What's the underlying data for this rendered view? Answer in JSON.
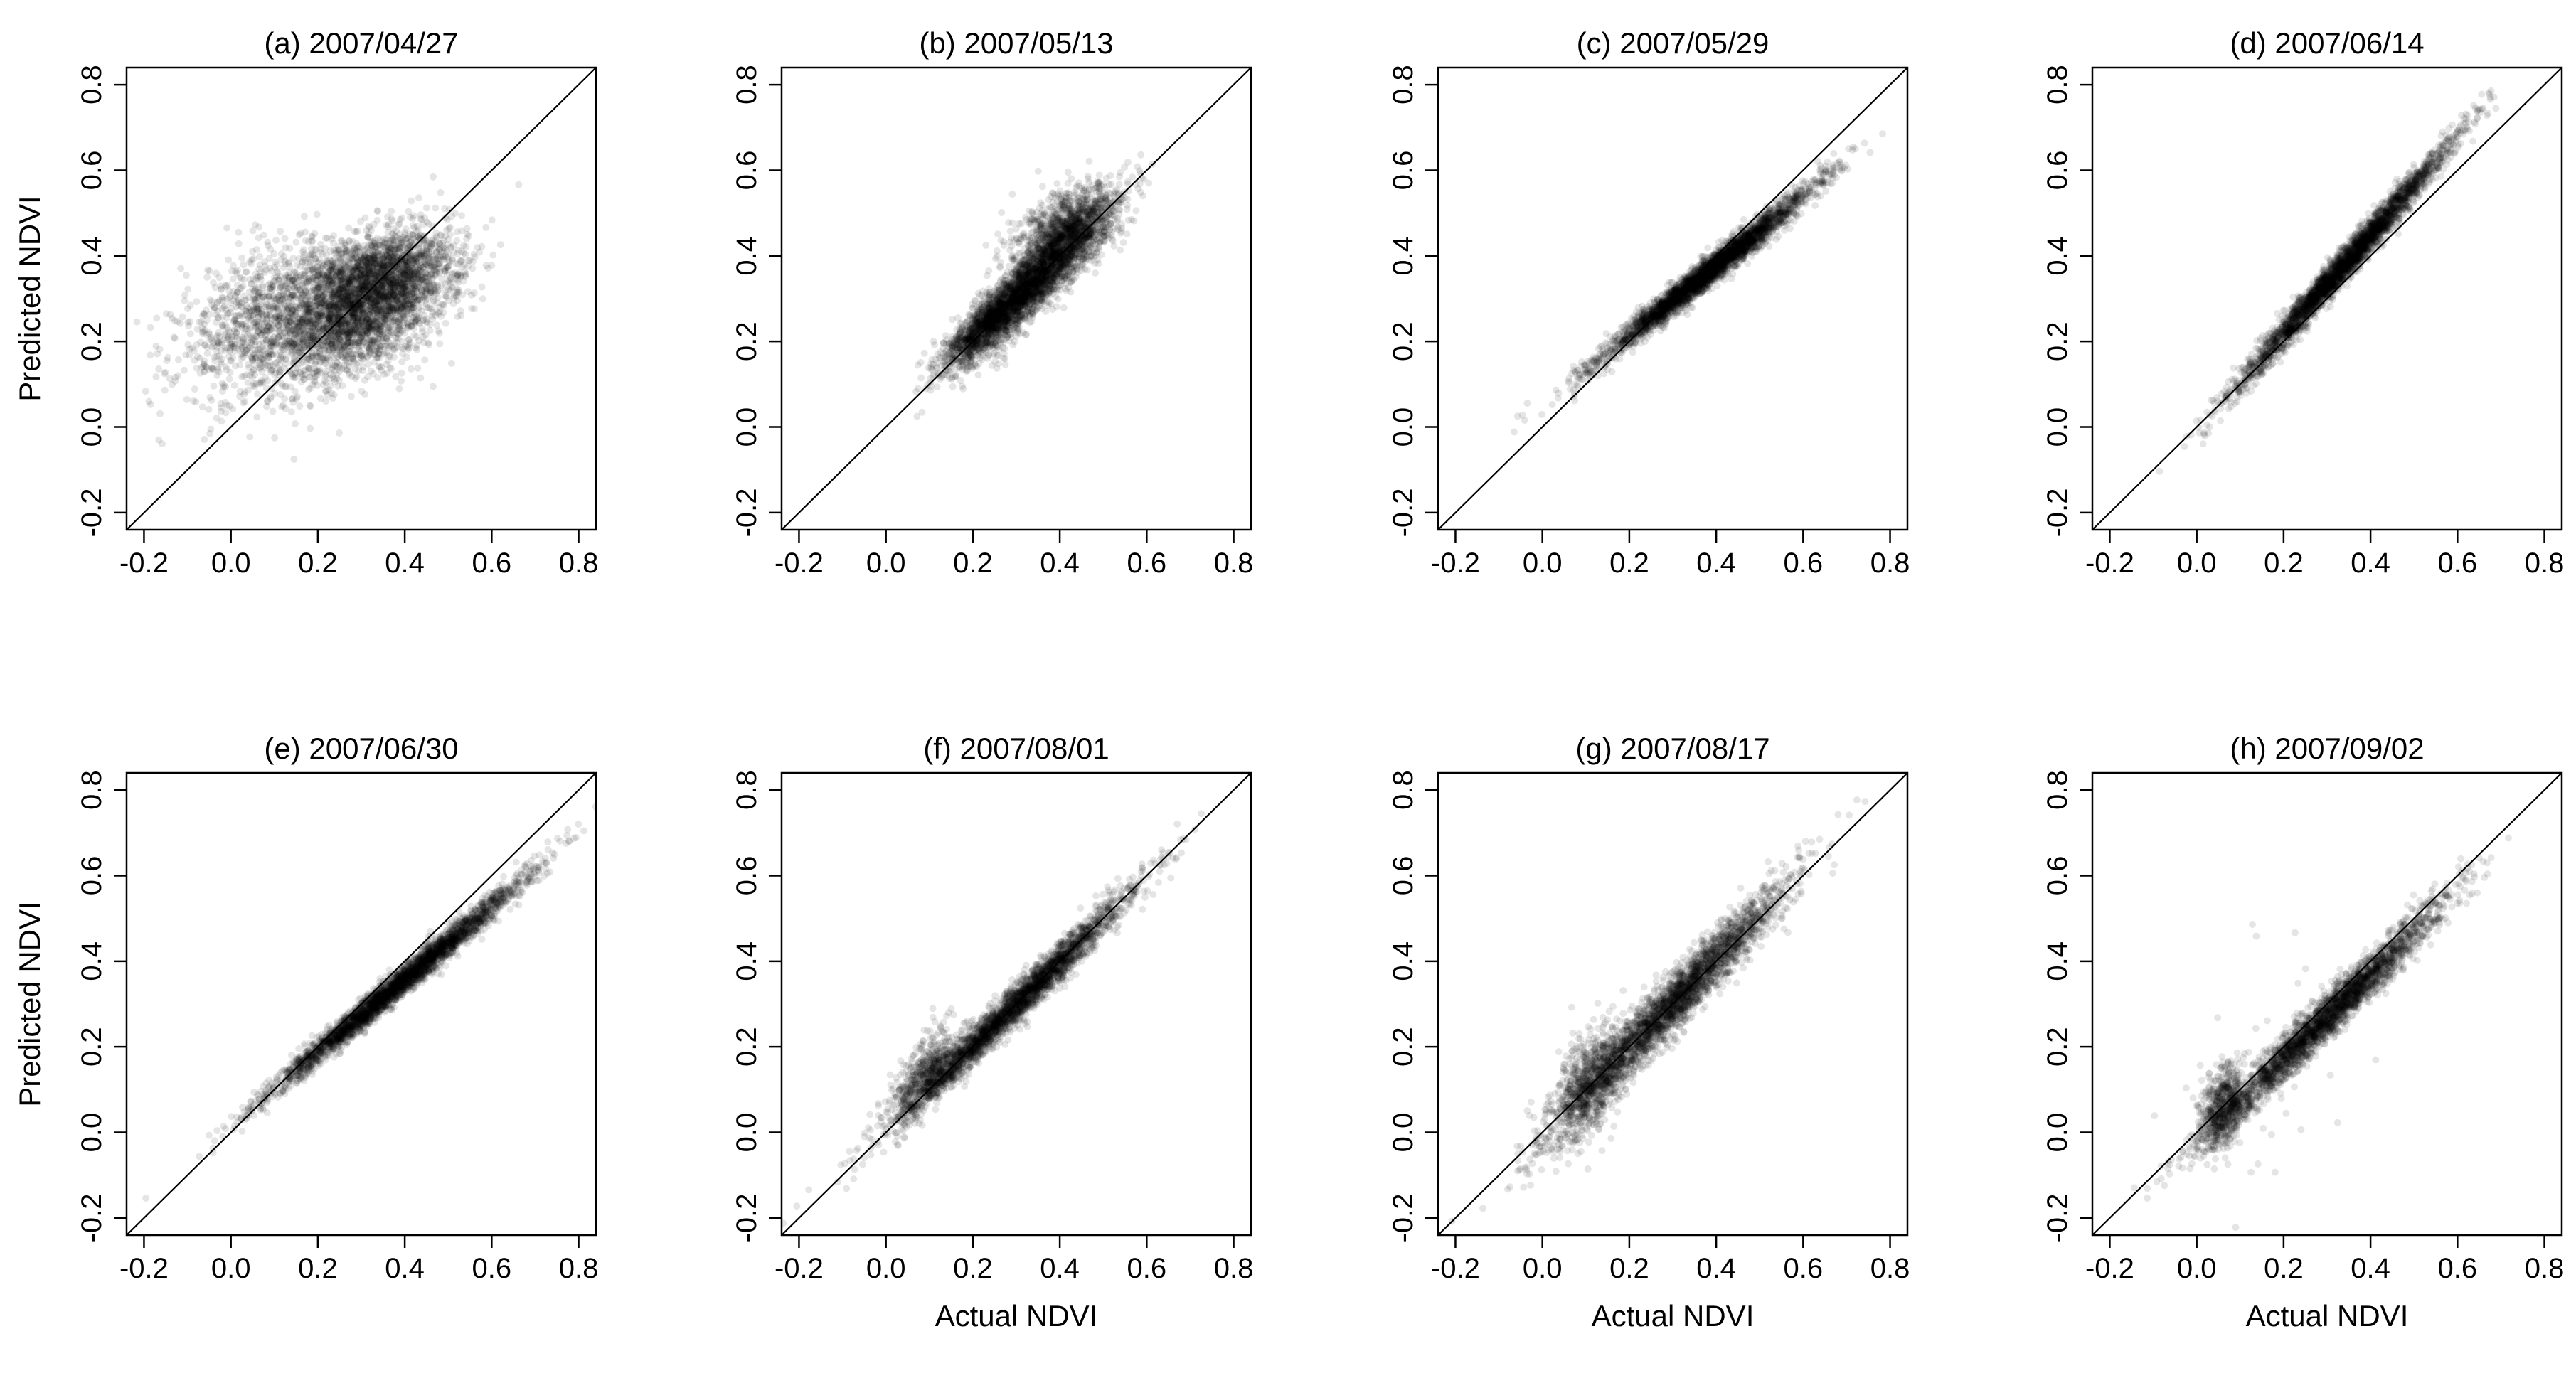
{
  "figure": {
    "panel_titles": [
      "(a) 2007/04/27",
      "(b) 2007/05/13",
      "(c) 2007/05/29",
      "(d) 2007/06/14",
      "(e) 2007/06/30",
      "(f) 2007/08/01",
      "(g) 2007/08/17",
      "(h) 2007/09/02"
    ],
    "xlabel": "Actual NDVI",
    "ylabel": "Predicted NDVI",
    "tick_labels": [
      "-0.2",
      "0.0",
      "0.2",
      "0.4",
      "0.6",
      "0.8"
    ]
  },
  "chart_data": [
    {
      "type": "scatter",
      "title": "(a) 2007/04/27",
      "xlabel": "",
      "ylabel": "Predicted NDVI",
      "xlim": [
        -0.24,
        0.84
      ],
      "ylim": [
        -0.24,
        0.84
      ],
      "xticks": [
        -0.2,
        0.0,
        0.2,
        0.4,
        0.6,
        0.8
      ],
      "yticks": [
        -0.2,
        0.0,
        0.2,
        0.4,
        0.6,
        0.8
      ],
      "reference_line": "y = x",
      "point_color": "#000000",
      "clusters": [
        {
          "cx": 0.3,
          "cy": 0.28,
          "sx": 0.1,
          "sy": 0.08,
          "rho": 0.45,
          "n": 3000
        },
        {
          "cx": 0.08,
          "cy": 0.25,
          "sx": 0.1,
          "sy": 0.09,
          "rho": 0.4,
          "n": 1000
        },
        {
          "cx": 0.35,
          "cy": 0.36,
          "sx": 0.09,
          "sy": 0.05,
          "rho": 0.3,
          "n": 1000
        }
      ]
    },
    {
      "type": "scatter",
      "title": "(b) 2007/05/13",
      "xlabel": "",
      "ylabel": "",
      "xlim": [
        -0.24,
        0.84
      ],
      "ylim": [
        -0.24,
        0.84
      ],
      "xticks": [
        -0.2,
        0.0,
        0.2,
        0.4,
        0.6,
        0.8
      ],
      "yticks": [
        -0.2,
        0.0,
        0.2,
        0.4,
        0.6,
        0.8
      ],
      "reference_line": "y = x",
      "point_color": "#000000",
      "clusters": [
        {
          "cx": 0.33,
          "cy": 0.33,
          "sx": 0.08,
          "sy": 0.085,
          "rho": 0.9,
          "n": 3000
        },
        {
          "cx": 0.42,
          "cy": 0.46,
          "sx": 0.06,
          "sy": 0.05,
          "rho": 0.5,
          "n": 1200
        },
        {
          "cx": 0.23,
          "cy": 0.24,
          "sx": 0.05,
          "sy": 0.05,
          "rho": 0.85,
          "n": 800
        }
      ]
    },
    {
      "type": "scatter",
      "title": "(c) 2007/05/29",
      "xlabel": "",
      "ylabel": "",
      "xlim": [
        -0.24,
        0.84
      ],
      "ylim": [
        -0.24,
        0.84
      ],
      "xticks": [
        -0.2,
        0.0,
        0.2,
        0.4,
        0.6,
        0.8
      ],
      "yticks": [
        -0.2,
        0.0,
        0.2,
        0.4,
        0.6,
        0.8
      ],
      "reference_line": "y = x",
      "point_color": "#000000",
      "clusters": [
        {
          "cx": 0.38,
          "cy": 0.36,
          "sx": 0.12,
          "sy": 0.1,
          "rho": 0.985,
          "n": 3500
        }
      ]
    },
    {
      "type": "scatter",
      "title": "(d) 2007/06/14",
      "xlabel": "",
      "ylabel": "",
      "xlim": [
        -0.24,
        0.84
      ],
      "ylim": [
        -0.24,
        0.84
      ],
      "xticks": [
        -0.2,
        0.0,
        0.2,
        0.4,
        0.6,
        0.8
      ],
      "yticks": [
        -0.2,
        0.0,
        0.2,
        0.4,
        0.6,
        0.8
      ],
      "reference_line": "y = x",
      "point_color": "#000000",
      "clusters": [
        {
          "cx": 0.34,
          "cy": 0.38,
          "sx": 0.12,
          "sy": 0.14,
          "rho": 0.99,
          "n": 3500
        }
      ]
    },
    {
      "type": "scatter",
      "title": "(e) 2007/06/30",
      "xlabel": "",
      "ylabel": "Predicted NDVI",
      "xlim": [
        -0.24,
        0.84
      ],
      "ylim": [
        -0.24,
        0.84
      ],
      "xticks": [
        -0.2,
        0.0,
        0.2,
        0.4,
        0.6,
        0.8
      ],
      "yticks": [
        -0.2,
        0.0,
        0.2,
        0.4,
        0.6,
        0.8
      ],
      "reference_line": "y = x",
      "point_color": "#000000",
      "clusters": [
        {
          "cx": 0.38,
          "cy": 0.34,
          "sx": 0.14,
          "sy": 0.12,
          "rho": 0.99,
          "n": 3500
        }
      ]
    },
    {
      "type": "scatter",
      "title": "(f) 2007/08/01",
      "xlabel": "Actual NDVI",
      "ylabel": "",
      "xlim": [
        -0.24,
        0.84
      ],
      "ylim": [
        -0.24,
        0.84
      ],
      "xticks": [
        -0.2,
        0.0,
        0.2,
        0.4,
        0.6,
        0.8
      ],
      "yticks": [
        -0.2,
        0.0,
        0.2,
        0.4,
        0.6,
        0.8
      ],
      "reference_line": "y = x",
      "point_color": "#000000",
      "clusters": [
        {
          "cx": 0.3,
          "cy": 0.3,
          "sx": 0.13,
          "sy": 0.13,
          "rho": 0.985,
          "n": 3000
        },
        {
          "cx": 0.1,
          "cy": 0.14,
          "sx": 0.04,
          "sy": 0.05,
          "rho": 0.6,
          "n": 600
        }
      ]
    },
    {
      "type": "scatter",
      "title": "(g) 2007/08/17",
      "xlabel": "Actual NDVI",
      "ylabel": "",
      "xlim": [
        -0.24,
        0.84
      ],
      "ylim": [
        -0.24,
        0.84
      ],
      "xticks": [
        -0.2,
        0.0,
        0.2,
        0.4,
        0.6,
        0.8
      ],
      "yticks": [
        -0.2,
        0.0,
        0.2,
        0.4,
        0.6,
        0.8
      ],
      "reference_line": "y = x",
      "point_color": "#000000",
      "clusters": [
        {
          "cx": 0.3,
          "cy": 0.3,
          "sx": 0.13,
          "sy": 0.14,
          "rho": 0.97,
          "n": 3000
        },
        {
          "cx": 0.11,
          "cy": 0.12,
          "sx": 0.04,
          "sy": 0.07,
          "rho": 0.5,
          "n": 700
        }
      ]
    },
    {
      "type": "scatter",
      "title": "(h) 2007/09/02",
      "xlabel": "Actual NDVI",
      "ylabel": "",
      "xlim": [
        -0.24,
        0.84
      ],
      "ylim": [
        -0.24,
        0.84
      ],
      "xticks": [
        -0.2,
        0.0,
        0.2,
        0.4,
        0.6,
        0.8
      ],
      "yticks": [
        -0.2,
        0.0,
        0.2,
        0.4,
        0.6,
        0.8
      ],
      "reference_line": "y = x",
      "point_color": "#000000",
      "clusters": [
        {
          "cx": 0.3,
          "cy": 0.27,
          "sx": 0.13,
          "sy": 0.13,
          "rho": 0.98,
          "n": 3000
        },
        {
          "cx": 0.06,
          "cy": 0.06,
          "sx": 0.025,
          "sy": 0.05,
          "rho": 0.3,
          "n": 600
        },
        {
          "cx": 0.15,
          "cy": 0.12,
          "sx": 0.12,
          "sy": 0.15,
          "rho": 0.2,
          "n": 60
        }
      ]
    }
  ]
}
